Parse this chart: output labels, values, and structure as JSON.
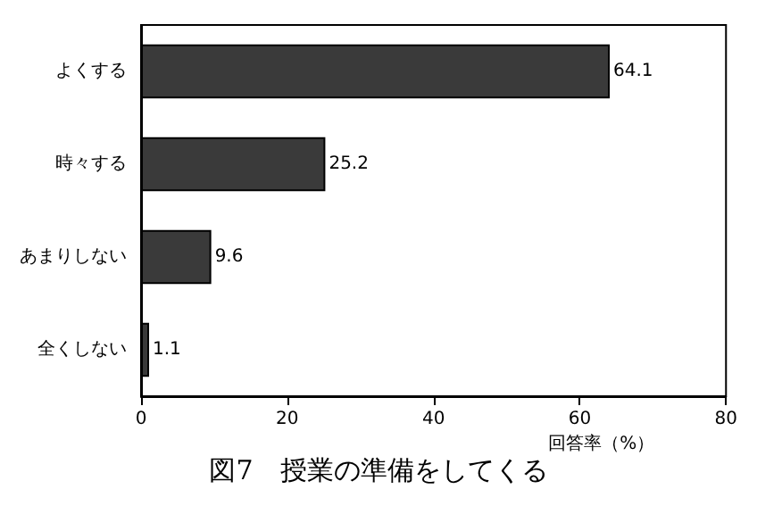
{
  "chart_data": {
    "type": "bar",
    "orientation": "horizontal",
    "title": "図7　授業の準備をしてくる",
    "xlabel": "回答率（%）",
    "categories": [
      "よくする",
      "時々する",
      "あまりしない",
      "全くしない"
    ],
    "values": [
      64.1,
      25.2,
      9.6,
      1.1
    ],
    "color": "#3a3a3a",
    "xlim": [
      0,
      80
    ],
    "xticks": [
      0,
      20,
      40,
      60,
      80
    ],
    "data_labels": true,
    "grid": false
  }
}
